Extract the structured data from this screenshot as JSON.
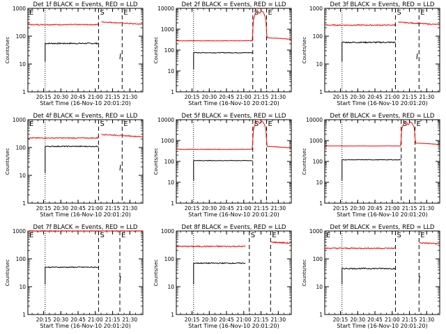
{
  "layout": {
    "rows": 3,
    "cols": 3
  },
  "common": {
    "ylabel": "Counts/sec",
    "xlabel": "Start Time (16-Nov-10 20:01:20)",
    "xticks": [
      "20:15",
      "20:30",
      "20:45",
      "21:00",
      "21:15",
      "21:30"
    ],
    "xtick_minutes": [
      13.67,
      28.67,
      43.67,
      58.67,
      73.67,
      88.67
    ],
    "yticks": [
      "1",
      "10",
      "100",
      "1000"
    ],
    "yticks_big": [
      "1",
      "10",
      "100",
      "1000",
      "10000"
    ],
    "marker_S": "S",
    "marker_E": "E",
    "colors": {
      "events": "#000000",
      "lld": "#ff0000"
    }
  },
  "chart_data": [
    {
      "type": "line",
      "title": "Det 1f BLACK = Events, RED = LLD",
      "ylim": [
        1,
        1000
      ],
      "ylog": true,
      "xlim_minutes": [
        0,
        100
      ],
      "dotted_x": 15,
      "dashed_x": [
        61.5,
        82
      ],
      "E_left": true,
      "series": [
        {
          "name": "Events",
          "data_start": 15,
          "data_end": 61.5,
          "level": 55,
          "noise": 0.05,
          "resume_at": 80,
          "resume_level": 15
        },
        {
          "name": "LLD",
          "data_start": 0,
          "data_end": 100,
          "level": 260,
          "noise": 0.04,
          "jump_at": 61.5,
          "jump_level": 330,
          "gap": [
            61.5,
            64
          ]
        }
      ]
    },
    {
      "type": "line",
      "title": "Det 2f BLACK = Events, RED = LLD",
      "ylim": [
        1,
        10000
      ],
      "ylog": true,
      "xlim_minutes": [
        0,
        100
      ],
      "dotted_x": 15,
      "dashed_x": [
        66.5,
        78.5
      ],
      "E_left": false,
      "series": [
        {
          "name": "Events",
          "data_start": 15,
          "data_end": 66.5,
          "level": 75,
          "noise": 0.04
        },
        {
          "name": "LLD",
          "data_start": 0,
          "data_end": 100,
          "level": 280,
          "noise": 0.03,
          "flare": [
            66.5,
            78.5
          ],
          "flare_peak": 9000
        }
      ]
    },
    {
      "type": "line",
      "title": "Det 3f BLACK = Events, RED = LLD",
      "ylim": [
        1,
        1000
      ],
      "ylog": true,
      "xlim_minutes": [
        0,
        100
      ],
      "dotted_x": 15,
      "dashed_x": [
        61.5,
        82
      ],
      "E_left": false,
      "series": [
        {
          "name": "Events",
          "data_start": 15,
          "data_end": 61.5,
          "level": 60,
          "noise": 0.05,
          "resume_at": 80,
          "resume_level": 15
        },
        {
          "name": "LLD",
          "data_start": 0,
          "data_end": 100,
          "level": 250,
          "noise": 0.04,
          "jump_at": 61.5,
          "jump_level": 320,
          "gap": [
            61.5,
            64
          ]
        }
      ]
    },
    {
      "type": "line",
      "title": "Det 4f BLACK = Events, RED = LLD",
      "ylim": [
        1,
        1000
      ],
      "ylog": true,
      "xlim_minutes": [
        0,
        100
      ],
      "dotted_x": 15,
      "dashed_x": [
        61.5,
        82
      ],
      "E_left": true,
      "series": [
        {
          "name": "Events",
          "data_start": 15,
          "data_end": 61.5,
          "level": 110,
          "noise": 0.04,
          "resume_at": 80,
          "resume_level": 15
        },
        {
          "name": "LLD",
          "data_start": 0,
          "data_end": 100,
          "level": 220,
          "noise": 0.04,
          "jump_at": 61.5,
          "jump_level": 300,
          "gap": [
            61.5,
            64
          ]
        }
      ]
    },
    {
      "type": "line",
      "title": "Det 5f BLACK = Events, RED = LLD",
      "ylim": [
        1,
        10000
      ],
      "ylog": true,
      "xlim_minutes": [
        0,
        100
      ],
      "dotted_x": 15,
      "dashed_x": [
        66.5,
        78.5
      ],
      "E_left": false,
      "series": [
        {
          "name": "Events",
          "data_start": 15,
          "data_end": 66.5,
          "level": 110,
          "noise": 0.03
        },
        {
          "name": "LLD",
          "data_start": 0,
          "data_end": 100,
          "level": 380,
          "noise": 0.03,
          "flare": [
            66.5,
            78.5
          ],
          "flare_peak": 10000
        }
      ]
    },
    {
      "type": "line",
      "title": "Det 6f BLACK = Events, RED = LLD",
      "ylim": [
        1,
        10000
      ],
      "ylog": true,
      "xlim_minutes": [
        0,
        100
      ],
      "dotted_x": 15,
      "dashed_x": [
        66.5,
        78.5
      ],
      "E_left": false,
      "series": [
        {
          "name": "Events",
          "data_start": 15,
          "data_end": 66.5,
          "level": 120,
          "noise": 0.03
        },
        {
          "name": "LLD",
          "data_start": 0,
          "data_end": 100,
          "level": 550,
          "noise": 0.02,
          "flare": [
            66.5,
            78.5
          ],
          "flare_peak": 9000
        }
      ]
    },
    {
      "type": "line",
      "title": "Det 7f BLACK = Events, RED = LLD",
      "ylim": [
        1,
        1000
      ],
      "ylog": true,
      "xlim_minutes": [
        0,
        100
      ],
      "dotted_x": 15,
      "dashed_x": [
        61.5,
        80
      ],
      "E_left": true,
      "series": [
        {
          "name": "Events",
          "data_start": 15,
          "data_end": 61.5,
          "level": 50,
          "noise": 0.04,
          "resume_at": 80,
          "resume_level": 15
        },
        {
          "name": "LLD",
          "data_start": 0,
          "data_end": 100,
          "level": 1000,
          "noise": 0.03
        }
      ]
    },
    {
      "type": "line",
      "title": "Det 8f BLACK = Events, RED = LLD",
      "ylim": [
        1,
        1000
      ],
      "ylog": true,
      "xlim_minutes": [
        0,
        100
      ],
      "dotted_x": 15,
      "dashed_x": [
        63.5,
        82
      ],
      "E_left": false,
      "series": [
        {
          "name": "Events",
          "data_start": 15,
          "data_end": 60,
          "level": 70,
          "noise": 0.04
        },
        {
          "name": "LLD",
          "data_start": 0,
          "data_end": 100,
          "level": 280,
          "noise": 0.05,
          "jump_at": 82,
          "jump_level": 400,
          "gap": [
            60,
            82
          ]
        }
      ]
    },
    {
      "type": "line",
      "title": "Det 9f BLACK = Events, RED = LLD",
      "ylim": [
        1,
        1000
      ],
      "ylog": true,
      "xlim_minutes": [
        0,
        100
      ],
      "dotted_x": 15,
      "dashed_x": [
        61.5,
        82
      ],
      "E_left": true,
      "series": [
        {
          "name": "Events",
          "data_start": 15,
          "data_end": 61.5,
          "level": 45,
          "noise": 0.05,
          "resume_at": 82,
          "resume_level": 15
        },
        {
          "name": "LLD",
          "data_start": 0,
          "data_end": 100,
          "level": 240,
          "noise": 0.05,
          "jump_at": 82,
          "jump_level": 380,
          "gap": [
            61.5,
            82
          ]
        }
      ]
    }
  ]
}
